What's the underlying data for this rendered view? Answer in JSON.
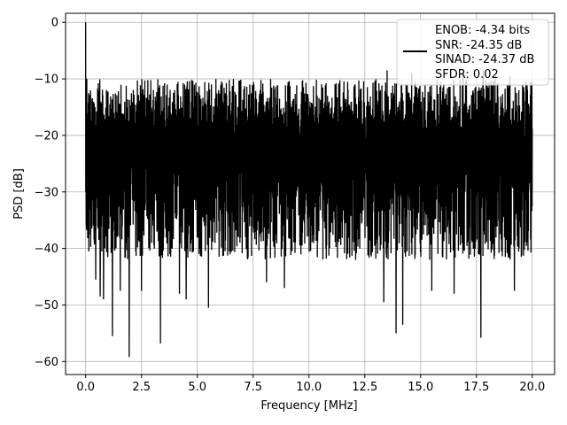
{
  "chart_data": {
    "type": "line",
    "xlabel": "Frequency [MHz]",
    "ylabel": "PSD [dB]",
    "xlim": [
      -0.9,
      21.0
    ],
    "ylim": [
      -62.3,
      1.6
    ],
    "grid": true,
    "xticks": [
      0.0,
      2.5,
      5.0,
      7.5,
      10.0,
      12.5,
      15.0,
      17.5,
      20.0
    ],
    "xtick_labels": [
      "0.0",
      "2.5",
      "5.0",
      "7.5",
      "10.0",
      "12.5",
      "15.0",
      "17.5",
      "20.0"
    ],
    "yticks": [
      0,
      -10,
      -20,
      -30,
      -40,
      -50,
      -60
    ],
    "ytick_labels": [
      "0",
      "−10",
      "−20",
      "−30",
      "−40",
      "−50",
      "−60"
    ],
    "legend": {
      "placement": "top-right",
      "lines": [
        "ENOB: -4.34 bits",
        "SNR: -24.35 dB",
        "SINAD: -24.37 dB",
        "SFDR: 0.02"
      ]
    },
    "series": [
      {
        "color": "#000000",
        "x_range": [
          0.0,
          20.0
        ],
        "peak": {
          "x": 0.0,
          "y": 0.0
        },
        "noise_band": {
          "typical_max": -10,
          "typical_min": -38
        },
        "deep_dips": [
          {
            "x": 0.45,
            "y": -45.5
          },
          {
            "x": 0.65,
            "y": -48.5
          },
          {
            "x": 0.8,
            "y": -49.0
          },
          {
            "x": 1.2,
            "y": -55.5
          },
          {
            "x": 1.55,
            "y": -47.5
          },
          {
            "x": 1.95,
            "y": -59.2
          },
          {
            "x": 2.5,
            "y": -47.5
          },
          {
            "x": 3.35,
            "y": -56.8
          },
          {
            "x": 4.2,
            "y": -48.0
          },
          {
            "x": 4.5,
            "y": -49.0
          },
          {
            "x": 5.5,
            "y": -50.5
          },
          {
            "x": 8.1,
            "y": -46.0
          },
          {
            "x": 8.9,
            "y": -47.0
          },
          {
            "x": 13.35,
            "y": -49.5
          },
          {
            "x": 13.9,
            "y": -55.0
          },
          {
            "x": 14.2,
            "y": -53.5
          },
          {
            "x": 15.5,
            "y": -47.5
          },
          {
            "x": 16.5,
            "y": -48.0
          },
          {
            "x": 17.7,
            "y": -55.8
          },
          {
            "x": 19.2,
            "y": -47.5
          }
        ],
        "high_peaks": [
          {
            "x": 0.05,
            "y": -10.0
          },
          {
            "x": 13.5,
            "y": -8.5
          },
          {
            "x": 14.6,
            "y": -9.0
          },
          {
            "x": 16.9,
            "y": -8.8
          },
          {
            "x": 17.8,
            "y": -8.5
          },
          {
            "x": 19.0,
            "y": -9.5
          }
        ]
      }
    ]
  }
}
